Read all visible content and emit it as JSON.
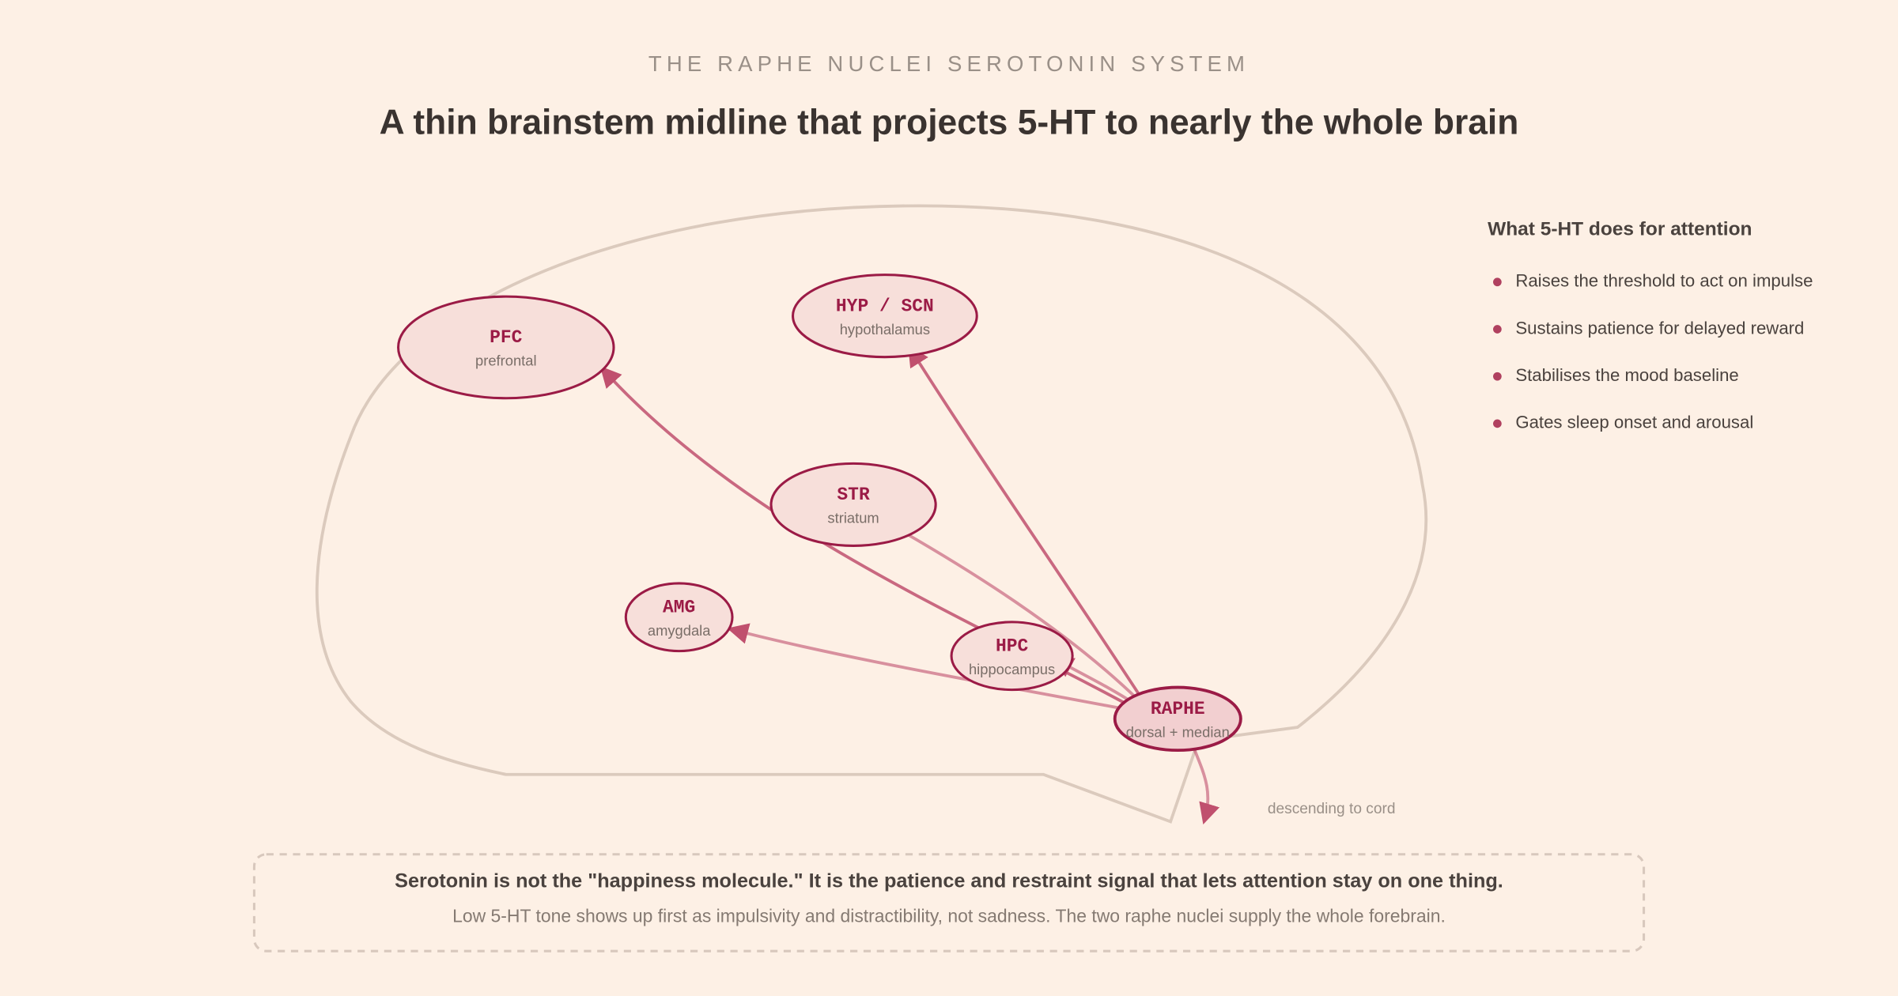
{
  "header": {
    "eyebrow": "THE RAPHE NUCLEI SEROTONIN SYSTEM",
    "title": "A thin brainstem midline that projects 5-HT to nearly the whole brain"
  },
  "nodes": [
    {
      "label": "PFC",
      "sublabel": "prefrontal"
    },
    {
      "label": "HYP / SCN",
      "sublabel": "hypothalamus"
    },
    {
      "label": "STR",
      "sublabel": "striatum"
    },
    {
      "label": "AMG",
      "sublabel": "amygdala"
    },
    {
      "label": "HPC",
      "sublabel": "hippocampus"
    },
    {
      "label": "RAPHE",
      "sublabel": "dorsal + median"
    }
  ],
  "annotation": "descending to cord",
  "sidebar": {
    "title": "What 5-HT does for attention",
    "items": [
      "Raises the threshold to act on impulse",
      "Sustains patience for delayed reward",
      "Stabilises the mood baseline",
      "Gates sleep onset and arousal"
    ]
  },
  "callout": {
    "title": "Serotonin is not the \"happiness molecule.\" It is the patience and restraint signal that lets attention stay on one thing.",
    "text": "Low 5-HT tone shows up first as impulsivity and distractibility, not sadness. The two raphe nuclei supply the whole forebrain."
  }
}
